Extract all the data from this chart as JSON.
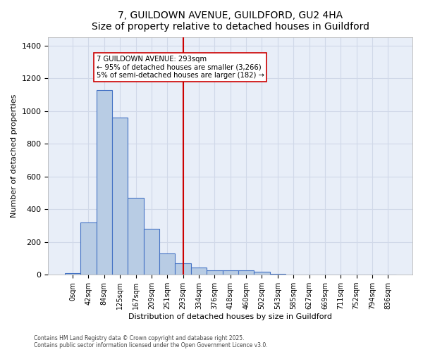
{
  "title": "7, GUILDOWN AVENUE, GUILDFORD, GU2 4HA",
  "subtitle": "Size of property relative to detached houses in Guildford",
  "xlabel": "Distribution of detached houses by size in Guildford",
  "ylabel": "Number of detached properties",
  "bin_labels": [
    "0sqm",
    "42sqm",
    "84sqm",
    "125sqm",
    "167sqm",
    "209sqm",
    "251sqm",
    "293sqm",
    "334sqm",
    "376sqm",
    "418sqm",
    "460sqm",
    "502sqm",
    "543sqm",
    "585sqm",
    "627sqm",
    "669sqm",
    "711sqm",
    "752sqm",
    "794sqm",
    "836sqm"
  ],
  "bar_heights": [
    10,
    320,
    1130,
    960,
    470,
    280,
    130,
    70,
    45,
    25,
    28,
    28,
    20,
    5,
    0,
    0,
    0,
    0,
    0,
    0,
    0
  ],
  "bar_color": "#b8cce4",
  "bar_edge_color": "#4472c4",
  "vline_x": 7,
  "vline_color": "#cc0000",
  "annotation_text": "7 GUILDOWN AVENUE: 293sqm\n← 95% of detached houses are smaller (3,266)\n5% of semi-detached houses are larger (182) →",
  "annotation_box_color": "#ffffff",
  "annotation_box_edge": "#cc0000",
  "grid_color": "#d0d8e8",
  "bg_color": "#e8eef8",
  "ylim": [
    0,
    1450
  ],
  "yticks": [
    0,
    200,
    400,
    600,
    800,
    1000,
    1200,
    1400
  ],
  "footnote1": "Contains HM Land Registry data © Crown copyright and database right 2025.",
  "footnote2": "Contains public sector information licensed under the Open Government Licence v3.0."
}
